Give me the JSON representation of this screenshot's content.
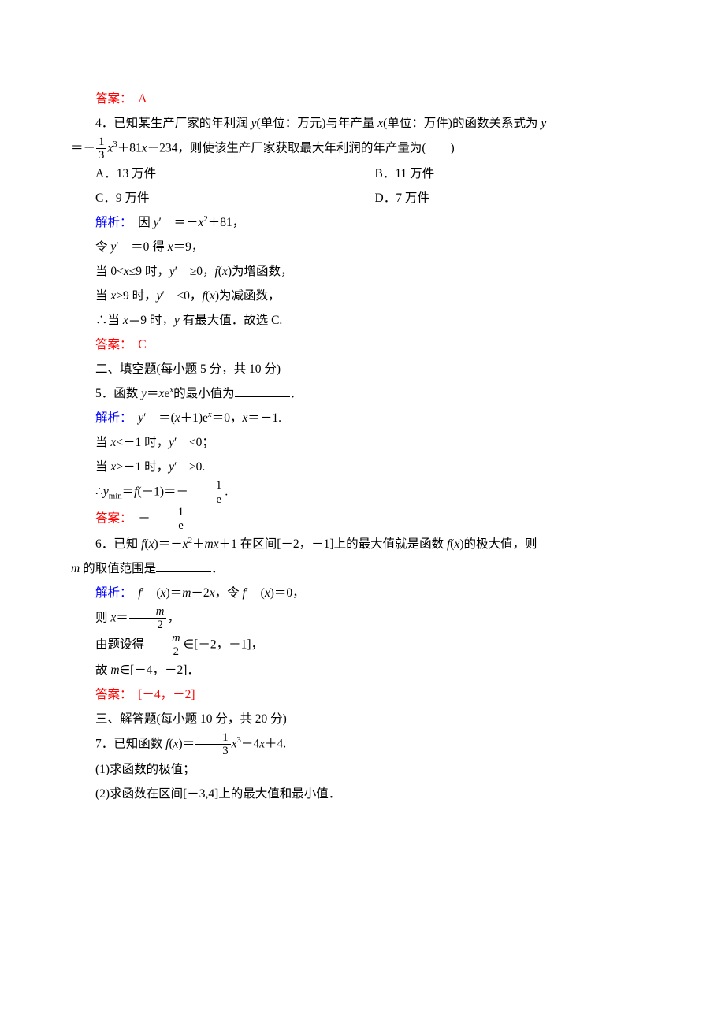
{
  "colors": {
    "answer": "#ff0000",
    "analysis": "#0000ff",
    "text": "#000000",
    "background": "#ffffff"
  },
  "font_size_pt": 11,
  "ans3": "答案：　A",
  "q4": {
    "stem_a": "4．已知某生产厂家的年利润 ",
    "stem_b": "(单位：万元)与年产量 ",
    "stem_c": "(单位：万件)的函数关系式为 ",
    "eq_lead": "＝－",
    "eq_tail": "＋81",
    "eq_tail2": "－234，则使该生产厂家获取最大年利润的年产量为(　　)",
    "optA": "A．13 万件",
    "optB": "B．11 万件",
    "optC": "C．9 万件",
    "optD": "D．7 万件",
    "ana_label": "解析：",
    "ana1a": "　因 ",
    "ana1b": "′　＝－",
    "ana1c": "＋81，",
    "ana2a": "令 ",
    "ana2b": "′　＝0 得 ",
    "ana2c": "＝9，",
    "ana3a": "当 0<",
    "ana3b": "≤9 时，",
    "ana3c": "′　≥0，",
    "ana3d": "为增函数，",
    "ana4a": "当 ",
    "ana4b": ">9 时，",
    "ana4c": "′　<0，",
    "ana4d": "为减函数，",
    "ana5a": "∴当 ",
    "ana5b": "＝9 时，",
    "ana5c": " 有最大值．故选 C.",
    "answer": "答案：　C"
  },
  "sec2": "二、填空题(每小题 5 分，共 10 分)",
  "q5": {
    "stem_a": "5．函数 ",
    "stem_b": "＝",
    "stem_c": "e",
    "stem_d": "的最小值为",
    "stem_e": "．",
    "ana_label": "解析：",
    "ana1a": "′　＝(",
    "ana1b": "＋1)e",
    "ana1c": "＝0，",
    "ana1d": "＝－1.",
    "ana2a": "当 ",
    "ana2b": "<－1 时，",
    "ana2c": "′　<0；",
    "ana3a": "当 ",
    "ana3b": ">－1 时，",
    "ana3c": "′　>0.",
    "concl_a": "∴",
    "concl_b": "＝",
    "concl_c": "(－1)＝－",
    "answer_label": "答案：",
    "answer_val": "　－"
  },
  "q6": {
    "stem_a": "6．已知 ",
    "stem_b": "＝－",
    "stem_c": "＋",
    "stem_d": "＋1 在区间[－2，－1]上的最大值就是函数 ",
    "stem_e": "的极大值，则",
    "stem2_a": " 的取值范围是",
    "stem2_b": "．",
    "ana_label": "解析：",
    "ana1a": "′　(",
    "ana1b": ")＝",
    "ana1c": "－2",
    "ana1d": "，令 ",
    "ana1e": "′　(",
    "ana1f": ")＝0，",
    "ana2a": "则 ",
    "ana2b": "＝",
    "ana2c": "，",
    "ana3a": "由题设得",
    "ana3b": "∈[－2，－1]，",
    "ana4a": "故 ",
    "ana4b": "∈[－4，－2]．",
    "answer": "答案：　[－4，－2]"
  },
  "sec3": "三、解答题(每小题 10 分，共 20 分)",
  "q7": {
    "stem_a": "7．已知函数 ",
    "stem_b": "＝",
    "stem_c": "－4",
    "stem_d": "＋4.",
    "p1": "(1)求函数的极值；",
    "p2": "(2)求函数在区间[－3,4]上的最大值和最小值．"
  }
}
